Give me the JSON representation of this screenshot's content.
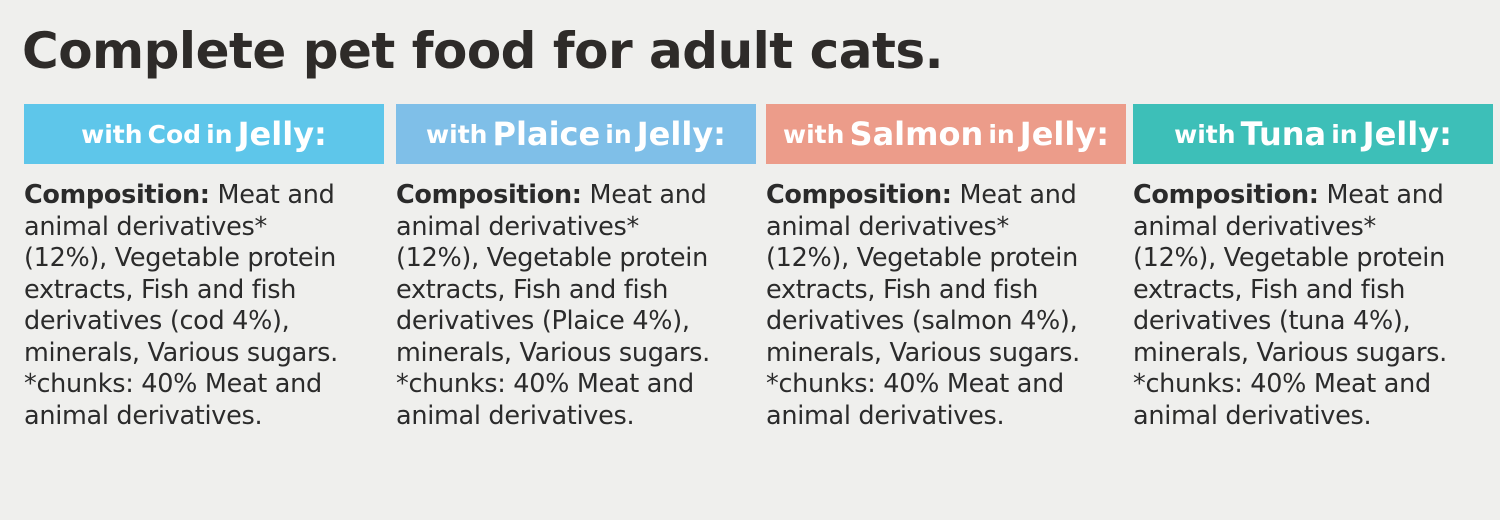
{
  "title": "Complete pet food for adult cats.",
  "variants": [
    {
      "prefix": "with",
      "name": "Cod",
      "mid": "in",
      "suffix": "Jelly:",
      "color": "#5ec6ea",
      "label": "Composition:",
      "lines": [
        "Meat and",
        "animal derivatives*",
        "(12%), Vegetable protein",
        "extracts, Fish and fish",
        "derivatives (cod 4%),",
        "minerals, Various sugars.",
        "*chunks: 40% Meat and",
        "animal derivatives."
      ]
    },
    {
      "prefix": "with",
      "name": "Plaice",
      "mid": "in",
      "suffix": "Jelly:",
      "color": "#7fbfe8",
      "label": "Composition:",
      "lines": [
        "Meat and",
        "animal derivatives*",
        "(12%), Vegetable protein",
        "extracts, Fish and fish",
        "derivatives (Plaice 4%),",
        "minerals, Various sugars.",
        "*chunks: 40% Meat and",
        "animal derivatives."
      ]
    },
    {
      "prefix": "with",
      "name": "Salmon",
      "mid": "in",
      "suffix": "Jelly:",
      "color": "#ec9c8a",
      "label": "Composition:",
      "lines": [
        "Meat and",
        "animal derivatives*",
        "(12%), Vegetable protein",
        "extracts, Fish and fish",
        "derivatives (salmon 4%),",
        "minerals, Various sugars.",
        "*chunks: 40% Meat and",
        "animal derivatives."
      ]
    },
    {
      "prefix": "with",
      "name": "Tuna",
      "mid": "in",
      "suffix": "Jelly:",
      "color": "#3dbfb8",
      "label": "Composition:",
      "lines": [
        "Meat and",
        "animal derivatives*",
        "(12%), Vegetable protein",
        "extracts, Fish and fish",
        "derivatives (tuna 4%),",
        "minerals, Various sugars.",
        "*chunks: 40% Meat and",
        "animal derivatives."
      ]
    }
  ]
}
